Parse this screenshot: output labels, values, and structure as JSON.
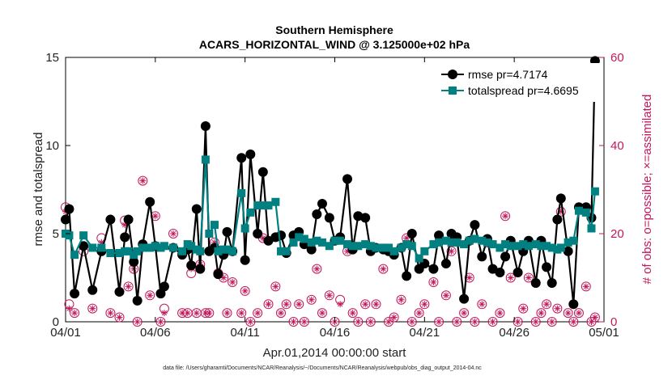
{
  "chart_data": {
    "type": "line",
    "title": "Southern Hemisphere",
    "subtitle": "ACARS_HORIZONTAL_WIND @ 3.125000e+02 hPa",
    "xlabel": "Apr.01,2014 00:00:00 start",
    "ylabel": "rmse and totalspread",
    "y2label": "# of obs: o=possible; ×=assimilated",
    "footer": "data file: /Users/gharamti/Documents/NCAR/Reanalysis/~/Documents/NCAR/Reanalysis/webpub/obs_diag_output_2014-04.nc",
    "xlim": [
      0,
      30
    ],
    "ylim": [
      0,
      15
    ],
    "y2lim": [
      0,
      60
    ],
    "x_ticks": [
      {
        "label": "04/01",
        "day": 0
      },
      {
        "label": "04/06",
        "day": 5
      },
      {
        "label": "04/11",
        "day": 10
      },
      {
        "label": "04/16",
        "day": 15
      },
      {
        "label": "04/21",
        "day": 20
      },
      {
        "label": "04/26",
        "day": 25
      },
      {
        "label": "05/01",
        "day": 30
      }
    ],
    "y_ticks": [
      "0",
      "5",
      "10",
      "15"
    ],
    "y2_ticks": [
      "0",
      "20",
      "40",
      "60"
    ],
    "legend_position": "top-right",
    "series": [
      {
        "name": "rmse pr=4.7174",
        "color": "#000000",
        "marker": "circle",
        "values": [
          [
            0.0,
            5.8
          ],
          [
            0.2,
            6.4
          ],
          [
            0.5,
            1.6
          ],
          [
            1.0,
            4.3
          ],
          [
            1.5,
            1.8
          ],
          [
            2.0,
            4.0
          ],
          [
            2.5,
            5.8
          ],
          [
            3.0,
            1.7
          ],
          [
            3.3,
            4.8
          ],
          [
            3.5,
            5.8
          ],
          [
            3.8,
            3.4
          ],
          [
            4.0,
            1.2
          ],
          [
            4.3,
            4.4
          ],
          [
            4.7,
            6.8
          ],
          [
            5.0,
            4.3
          ],
          [
            5.3,
            1.6
          ],
          [
            5.5,
            2.0
          ],
          [
            6.0,
            4.2
          ],
          [
            6.5,
            3.8
          ],
          [
            6.8,
            4.1
          ],
          [
            7.0,
            3.2
          ],
          [
            7.3,
            6.4
          ],
          [
            7.5,
            3.0
          ],
          [
            7.8,
            11.1
          ],
          [
            8.0,
            4.0
          ],
          [
            8.3,
            4.2
          ],
          [
            8.5,
            2.7
          ],
          [
            8.8,
            3.8
          ],
          [
            9.0,
            5.1
          ],
          [
            9.3,
            4.0
          ],
          [
            9.8,
            9.3
          ],
          [
            10.0,
            3.5
          ],
          [
            10.3,
            9.5
          ],
          [
            10.7,
            5.0
          ],
          [
            11.0,
            8.5
          ],
          [
            11.3,
            4.6
          ],
          [
            11.7,
            4.8
          ],
          [
            12.0,
            4.9
          ],
          [
            12.3,
            3.9
          ],
          [
            12.7,
            4.9
          ],
          [
            13.0,
            5.1
          ],
          [
            13.3,
            4.4
          ],
          [
            13.7,
            4.1
          ],
          [
            14.0,
            6.1
          ],
          [
            14.3,
            6.7
          ],
          [
            14.7,
            5.9
          ],
          [
            15.0,
            4.6
          ],
          [
            15.3,
            4.8
          ],
          [
            15.7,
            8.1
          ],
          [
            16.0,
            4.1
          ],
          [
            16.3,
            6.0
          ],
          [
            16.7,
            5.9
          ],
          [
            17.0,
            4.0
          ],
          [
            17.3,
            4.2
          ],
          [
            17.7,
            4.1
          ],
          [
            18.0,
            4.0
          ],
          [
            18.3,
            3.8
          ],
          [
            18.7,
            4.2
          ],
          [
            19.0,
            2.6
          ],
          [
            19.3,
            5.0
          ],
          [
            19.7,
            3.0
          ],
          [
            20.0,
            3.3
          ],
          [
            20.5,
            3.0
          ],
          [
            20.8,
            4.9
          ],
          [
            21.2,
            3.3
          ],
          [
            21.5,
            5.0
          ],
          [
            21.8,
            4.8
          ],
          [
            22.2,
            1.3
          ],
          [
            22.5,
            4.6
          ],
          [
            22.8,
            5.5
          ],
          [
            23.2,
            3.7
          ],
          [
            23.5,
            4.7
          ],
          [
            23.8,
            3.0
          ],
          [
            24.2,
            2.8
          ],
          [
            24.5,
            3.7
          ],
          [
            24.8,
            4.6
          ],
          [
            25.2,
            2.8
          ],
          [
            25.5,
            4.0
          ],
          [
            25.8,
            4.6
          ],
          [
            26.2,
            2.2
          ],
          [
            26.5,
            4.6
          ],
          [
            26.8,
            3.1
          ],
          [
            27.1,
            2.2
          ],
          [
            27.4,
            5.8
          ],
          [
            27.6,
            7.0
          ],
          [
            28.0,
            4.0
          ],
          [
            28.3,
            1.0
          ],
          [
            28.6,
            6.5
          ],
          [
            29.0,
            6.5
          ],
          [
            29.3,
            5.9
          ],
          [
            29.5,
            14.8
          ]
        ]
      },
      {
        "name": "totalspread pr=4.6695",
        "color": "#008080",
        "marker": "square",
        "values": [
          [
            0.0,
            5.0
          ],
          [
            0.2,
            4.9
          ],
          [
            0.5,
            3.8
          ],
          [
            1.0,
            4.9
          ],
          [
            1.5,
            4.2
          ],
          [
            2.0,
            4.2
          ],
          [
            2.5,
            3.9
          ],
          [
            3.0,
            3.9
          ],
          [
            3.3,
            4.0
          ],
          [
            3.5,
            4.0
          ],
          [
            3.8,
            3.8
          ],
          [
            4.0,
            4.0
          ],
          [
            4.3,
            4.2
          ],
          [
            4.7,
            4.2
          ],
          [
            5.0,
            4.3
          ],
          [
            5.3,
            4.2
          ],
          [
            5.5,
            4.3
          ],
          [
            6.0,
            4.2
          ],
          [
            6.5,
            4.0
          ],
          [
            6.8,
            4.4
          ],
          [
            7.0,
            4.3
          ],
          [
            7.3,
            4.1
          ],
          [
            7.5,
            4.0
          ],
          [
            7.8,
            9.2
          ],
          [
            8.0,
            5.0
          ],
          [
            8.3,
            5.5
          ],
          [
            8.5,
            4.0
          ],
          [
            8.8,
            4.1
          ],
          [
            9.0,
            4.1
          ],
          [
            9.3,
            4.0
          ],
          [
            9.8,
            7.3
          ],
          [
            10.0,
            5.3
          ],
          [
            10.3,
            6.2
          ],
          [
            10.7,
            6.6
          ],
          [
            11.0,
            6.6
          ],
          [
            11.3,
            6.6
          ],
          [
            11.7,
            6.8
          ],
          [
            12.0,
            4.0
          ],
          [
            12.3,
            4.0
          ],
          [
            12.7,
            4.5
          ],
          [
            13.0,
            4.8
          ],
          [
            13.3,
            4.7
          ],
          [
            13.7,
            4.5
          ],
          [
            14.0,
            4.6
          ],
          [
            14.3,
            4.5
          ],
          [
            14.7,
            4.3
          ],
          [
            15.0,
            4.6
          ],
          [
            15.3,
            4.6
          ],
          [
            15.7,
            4.4
          ],
          [
            16.0,
            4.3
          ],
          [
            16.3,
            4.3
          ],
          [
            16.7,
            4.4
          ],
          [
            17.0,
            4.3
          ],
          [
            17.3,
            4.2
          ],
          [
            17.7,
            4.2
          ],
          [
            18.0,
            4.2
          ],
          [
            18.3,
            4.0
          ],
          [
            18.7,
            4.2
          ],
          [
            19.0,
            4.4
          ],
          [
            19.3,
            4.3
          ],
          [
            19.7,
            3.6
          ],
          [
            20.0,
            4.0
          ],
          [
            20.5,
            4.4
          ],
          [
            20.8,
            4.5
          ],
          [
            21.2,
            4.6
          ],
          [
            21.5,
            4.5
          ],
          [
            21.8,
            4.5
          ],
          [
            22.2,
            4.4
          ],
          [
            22.5,
            4.6
          ],
          [
            22.8,
            4.7
          ],
          [
            23.2,
            4.6
          ],
          [
            23.5,
            4.5
          ],
          [
            23.8,
            4.4
          ],
          [
            24.2,
            4.2
          ],
          [
            24.5,
            4.4
          ],
          [
            24.8,
            4.3
          ],
          [
            25.2,
            4.3
          ],
          [
            25.5,
            4.4
          ],
          [
            25.8,
            4.3
          ],
          [
            26.2,
            4.4
          ],
          [
            26.5,
            4.3
          ],
          [
            26.8,
            4.3
          ],
          [
            27.1,
            4.2
          ],
          [
            27.4,
            4.1
          ],
          [
            27.6,
            4.2
          ],
          [
            28.0,
            4.5
          ],
          [
            28.3,
            4.6
          ],
          [
            28.6,
            6.3
          ],
          [
            29.0,
            6.2
          ],
          [
            29.3,
            5.3
          ],
          [
            29.5,
            7.4
          ]
        ]
      }
    ],
    "obs_possible": [
      [
        0.0,
        26
      ],
      [
        0.2,
        4
      ],
      [
        0.5,
        2
      ],
      [
        1.0,
        16
      ],
      [
        1.5,
        3
      ],
      [
        2.0,
        19
      ],
      [
        2.5,
        2
      ],
      [
        3.0,
        1
      ],
      [
        3.3,
        23
      ],
      [
        3.5,
        8
      ],
      [
        3.8,
        12
      ],
      [
        4.0,
        0
      ],
      [
        4.3,
        32
      ],
      [
        4.7,
        6
      ],
      [
        5.0,
        24
      ],
      [
        5.3,
        0
      ],
      [
        5.5,
        3
      ],
      [
        6.0,
        20
      ],
      [
        6.5,
        2
      ],
      [
        6.8,
        2
      ],
      [
        7.0,
        11
      ],
      [
        7.3,
        2
      ],
      [
        7.5,
        13
      ],
      [
        7.8,
        2
      ],
      [
        8.0,
        2
      ],
      [
        8.3,
        18
      ],
      [
        8.5,
        11
      ],
      [
        8.8,
        10
      ],
      [
        9.0,
        2
      ],
      [
        9.3,
        9
      ],
      [
        9.8,
        2
      ],
      [
        10.0,
        7
      ],
      [
        10.3,
        0
      ],
      [
        10.7,
        2
      ],
      [
        11.0,
        19
      ],
      [
        11.3,
        4
      ],
      [
        11.7,
        8
      ],
      [
        12.0,
        2
      ],
      [
        12.3,
        4
      ],
      [
        12.7,
        0
      ],
      [
        13.0,
        4
      ],
      [
        13.3,
        0
      ],
      [
        13.7,
        5
      ],
      [
        14.0,
        12
      ],
      [
        14.3,
        2
      ],
      [
        14.7,
        6
      ],
      [
        15.0,
        0
      ],
      [
        15.3,
        5
      ],
      [
        15.7,
        16
      ],
      [
        16.0,
        2
      ],
      [
        16.3,
        0
      ],
      [
        16.7,
        4
      ],
      [
        17.0,
        0
      ],
      [
        17.3,
        4
      ],
      [
        17.7,
        12
      ],
      [
        18.0,
        0
      ],
      [
        18.3,
        1
      ],
      [
        18.7,
        5
      ],
      [
        19.0,
        19
      ],
      [
        19.3,
        0
      ],
      [
        19.7,
        2
      ],
      [
        20.0,
        4
      ],
      [
        20.5,
        9
      ],
      [
        20.8,
        0
      ],
      [
        21.2,
        6
      ],
      [
        21.5,
        16
      ],
      [
        21.8,
        0
      ],
      [
        22.2,
        2
      ],
      [
        22.5,
        10
      ],
      [
        22.8,
        0
      ],
      [
        23.2,
        4
      ],
      [
        23.5,
        18
      ],
      [
        23.8,
        0
      ],
      [
        24.2,
        2
      ],
      [
        24.5,
        24
      ],
      [
        24.8,
        10
      ],
      [
        25.2,
        0
      ],
      [
        25.5,
        3
      ],
      [
        25.8,
        10
      ],
      [
        26.2,
        0
      ],
      [
        26.5,
        2
      ],
      [
        26.8,
        4
      ],
      [
        27.1,
        0
      ],
      [
        27.4,
        3
      ],
      [
        27.6,
        25
      ],
      [
        28.0,
        2
      ],
      [
        28.3,
        0
      ],
      [
        28.6,
        2
      ],
      [
        29.0,
        8
      ],
      [
        29.3,
        0
      ],
      [
        29.5,
        1
      ]
    ],
    "obs_assimilated": [
      [
        0.0,
        25
      ],
      [
        0.2,
        3
      ],
      [
        0.5,
        2
      ],
      [
        1.0,
        17
      ],
      [
        1.5,
        3
      ],
      [
        2.0,
        18
      ],
      [
        2.5,
        2
      ],
      [
        3.0,
        1
      ],
      [
        3.3,
        22
      ],
      [
        3.5,
        8
      ],
      [
        3.8,
        12
      ],
      [
        4.0,
        0
      ],
      [
        4.3,
        32
      ],
      [
        4.7,
        6
      ],
      [
        5.0,
        24
      ],
      [
        5.3,
        0
      ],
      [
        5.5,
        2
      ],
      [
        6.0,
        20
      ],
      [
        6.5,
        2
      ],
      [
        6.8,
        2
      ],
      [
        7.0,
        12
      ],
      [
        7.3,
        2
      ],
      [
        7.5,
        13
      ],
      [
        7.8,
        2
      ],
      [
        8.0,
        2
      ],
      [
        8.3,
        18
      ],
      [
        8.5,
        11
      ],
      [
        8.8,
        10
      ],
      [
        9.0,
        2
      ],
      [
        9.3,
        9
      ],
      [
        9.8,
        2
      ],
      [
        10.0,
        7
      ],
      [
        10.3,
        0
      ],
      [
        10.7,
        2
      ],
      [
        11.0,
        19
      ],
      [
        11.3,
        4
      ],
      [
        11.7,
        8
      ],
      [
        12.0,
        2
      ],
      [
        12.3,
        4
      ],
      [
        12.7,
        0
      ],
      [
        13.0,
        4
      ],
      [
        13.3,
        0
      ],
      [
        13.7,
        5
      ],
      [
        14.0,
        12
      ],
      [
        14.3,
        2
      ],
      [
        14.7,
        6
      ],
      [
        15.0,
        0
      ],
      [
        15.3,
        4
      ],
      [
        15.7,
        16
      ],
      [
        16.0,
        2
      ],
      [
        16.3,
        0
      ],
      [
        16.7,
        4
      ],
      [
        17.0,
        0
      ],
      [
        17.3,
        4
      ],
      [
        17.7,
        12
      ],
      [
        18.0,
        0
      ],
      [
        18.3,
        1
      ],
      [
        18.7,
        5
      ],
      [
        19.0,
        19
      ],
      [
        19.3,
        0
      ],
      [
        19.7,
        2
      ],
      [
        20.0,
        4
      ],
      [
        20.5,
        9
      ],
      [
        20.8,
        0
      ],
      [
        21.2,
        6
      ],
      [
        21.5,
        16
      ],
      [
        21.8,
        0
      ],
      [
        22.2,
        2
      ],
      [
        22.5,
        10
      ],
      [
        22.8,
        0
      ],
      [
        23.2,
        4
      ],
      [
        23.5,
        18
      ],
      [
        23.8,
        0
      ],
      [
        24.2,
        2
      ],
      [
        24.5,
        24
      ],
      [
        24.8,
        10
      ],
      [
        25.2,
        0
      ],
      [
        25.5,
        3
      ],
      [
        25.8,
        10
      ],
      [
        26.2,
        0
      ],
      [
        26.5,
        2
      ],
      [
        26.8,
        4
      ],
      [
        27.1,
        0
      ],
      [
        27.4,
        3
      ],
      [
        27.6,
        25
      ],
      [
        28.0,
        2
      ],
      [
        28.3,
        0
      ],
      [
        28.6,
        2
      ],
      [
        29.0,
        8
      ],
      [
        29.3,
        0
      ],
      [
        29.5,
        1
      ]
    ],
    "obs_color": "#c2185b"
  }
}
